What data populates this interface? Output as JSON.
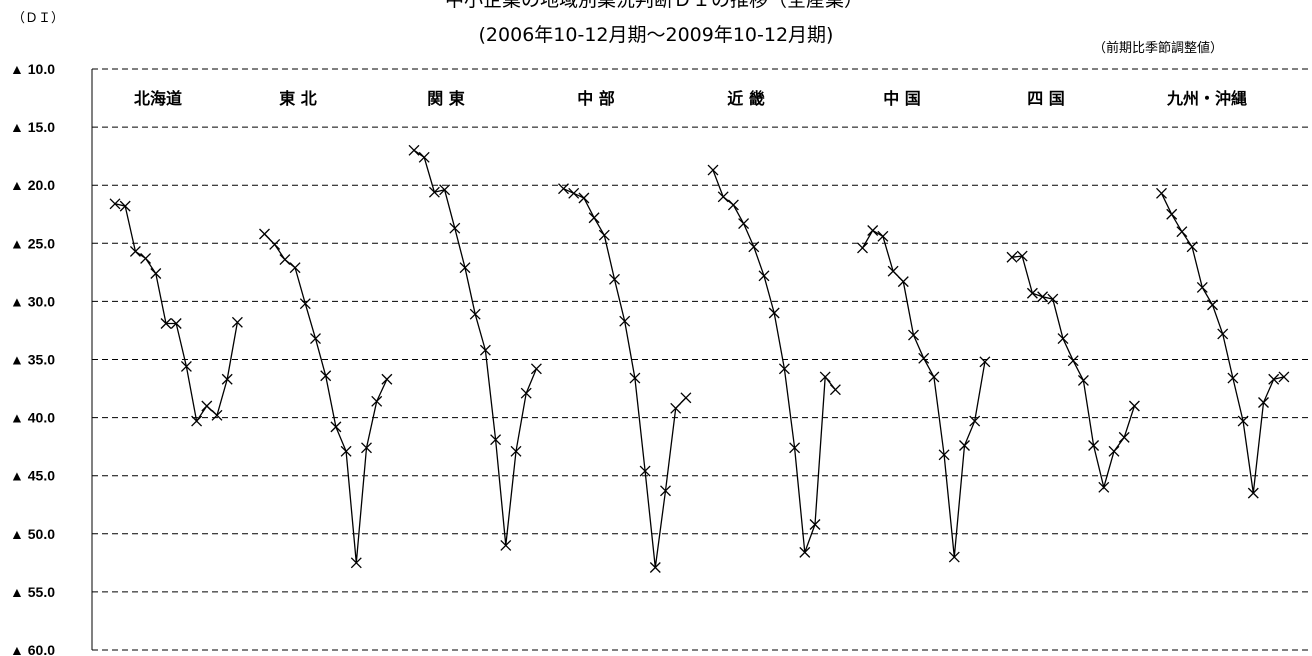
{
  "chart_data": {
    "type": "line",
    "title": "中小企業の地域別業況判断ＤＩの推移（全産業）",
    "subtitle": "(2006年10-12月期～2009年10-12月期)",
    "note": "（前期比季節調整値）",
    "ylabel": "（ＤＩ）",
    "yticks": [
      "▲ 10.0",
      "▲ 15.0",
      "▲ 20.0",
      "▲ 25.0",
      "▲ 30.0",
      "▲ 35.0",
      "▲ 40.0",
      "▲ 45.0",
      "▲ 50.0",
      "▲ 55.0",
      "▲ 60.0"
    ],
    "ylim": [
      -10,
      -60
    ],
    "grid": true,
    "marker": "x",
    "line_color": "#000000",
    "series": [
      {
        "name": "北海道",
        "values": [
          -21.6,
          -21.8,
          -25.7,
          -26.3,
          -27.6,
          -31.9,
          -31.9,
          -35.6,
          -40.3,
          -39.0,
          -39.8,
          -36.7,
          -31.8
        ]
      },
      {
        "name": "東 北",
        "values": [
          -24.2,
          -25.1,
          -26.4,
          -27.1,
          -30.2,
          -33.2,
          -36.4,
          -40.8,
          -42.9,
          -52.5,
          -42.6,
          -38.6,
          -36.7
        ]
      },
      {
        "name": "関 東",
        "values": [
          -17.0,
          -17.6,
          -20.6,
          -20.4,
          -23.7,
          -27.1,
          -31.1,
          -34.2,
          -41.9,
          -51.0,
          -42.9,
          -37.9,
          -35.8
        ]
      },
      {
        "name": "中 部",
        "values": [
          -20.3,
          -20.7,
          -21.1,
          -22.8,
          -24.3,
          -28.1,
          -31.7,
          -36.6,
          -44.6,
          -52.9,
          -46.3,
          -39.2,
          -38.3
        ]
      },
      {
        "name": "近 畿",
        "values": [
          -18.7,
          -21.0,
          -21.7,
          -23.3,
          -25.3,
          -27.8,
          -31.0,
          -35.8,
          -42.6,
          -51.6,
          -49.2,
          -36.5,
          -37.6
        ]
      },
      {
        "name": "中 国",
        "values": [
          -25.4,
          -23.9,
          -24.4,
          -27.4,
          -28.3,
          -32.9,
          -34.9,
          -36.5,
          -43.2,
          -52.0,
          -42.4,
          -40.3,
          -35.2
        ]
      },
      {
        "name": "四 国",
        "values": [
          -26.2,
          -26.1,
          -29.3,
          -29.6,
          -29.8,
          -33.2,
          -35.1,
          -36.8,
          -42.4,
          -46.0,
          -42.9,
          -41.7,
          -39.0
        ]
      },
      {
        "name": "九州・沖縄",
        "values": [
          -20.7,
          -22.5,
          -24.0,
          -25.3,
          -28.8,
          -30.3,
          -32.8,
          -36.6,
          -40.3,
          -46.5,
          -38.7,
          -36.7,
          -36.5
        ]
      }
    ]
  }
}
